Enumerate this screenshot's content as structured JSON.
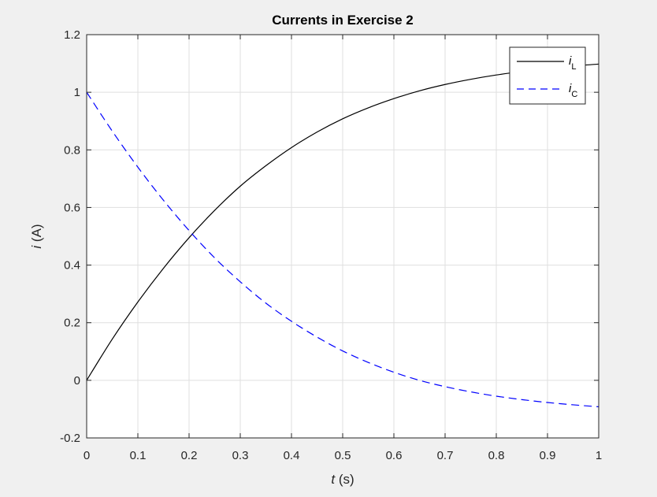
{
  "chart_data": {
    "type": "line",
    "title": "Currents in Exercise 2",
    "xlabel": {
      "var": "t",
      "unit": " (s)"
    },
    "ylabel": {
      "var": "i",
      "unit": " (A)"
    },
    "xlim": [
      0,
      1
    ],
    "ylim": [
      -0.2,
      1.2
    ],
    "xticks": [
      0,
      0.1,
      0.2,
      0.3,
      0.4,
      0.5,
      0.6,
      0.7,
      0.8,
      0.9,
      1
    ],
    "xtick_labels": [
      "0",
      "0.1",
      "0.2",
      "0.3",
      "0.4",
      "0.5",
      "0.6",
      "0.7",
      "0.8",
      "0.9",
      "1"
    ],
    "yticks": [
      -0.2,
      0,
      0.2,
      0.4,
      0.6,
      0.8,
      1,
      1.2
    ],
    "ytick_labels": [
      "-0.2",
      "0",
      "0.2",
      "0.4",
      "0.6",
      "0.8",
      "1",
      "1.2"
    ],
    "grid": true,
    "legend_position": "top-right",
    "x": [
      0,
      0.05,
      0.1,
      0.15,
      0.2,
      0.25,
      0.3,
      0.35,
      0.4,
      0.45,
      0.5,
      0.55,
      0.6,
      0.65,
      0.7,
      0.75,
      0.8,
      0.85,
      0.9,
      0.95,
      1
    ],
    "series": [
      {
        "name": "i",
        "subscript": "L",
        "color": "#000000",
        "line_style": "solid",
        "values": [
          0,
          0.143,
          0.272,
          0.389,
          0.495,
          0.59,
          0.674,
          0.745,
          0.808,
          0.862,
          0.908,
          0.946,
          0.978,
          1.005,
          1.027,
          1.045,
          1.06,
          1.072,
          1.082,
          1.091,
          1.098
        ]
      },
      {
        "name": "i",
        "subscript": "C",
        "color": "#0000ff",
        "line_style": "dashed",
        "values": [
          1,
          0.865,
          0.74,
          0.625,
          0.52,
          0.425,
          0.342,
          0.268,
          0.205,
          0.15,
          0.102,
          0.062,
          0.028,
          0,
          -0.022,
          -0.04,
          -0.055,
          -0.067,
          -0.077,
          -0.085,
          -0.092
        ]
      }
    ]
  }
}
